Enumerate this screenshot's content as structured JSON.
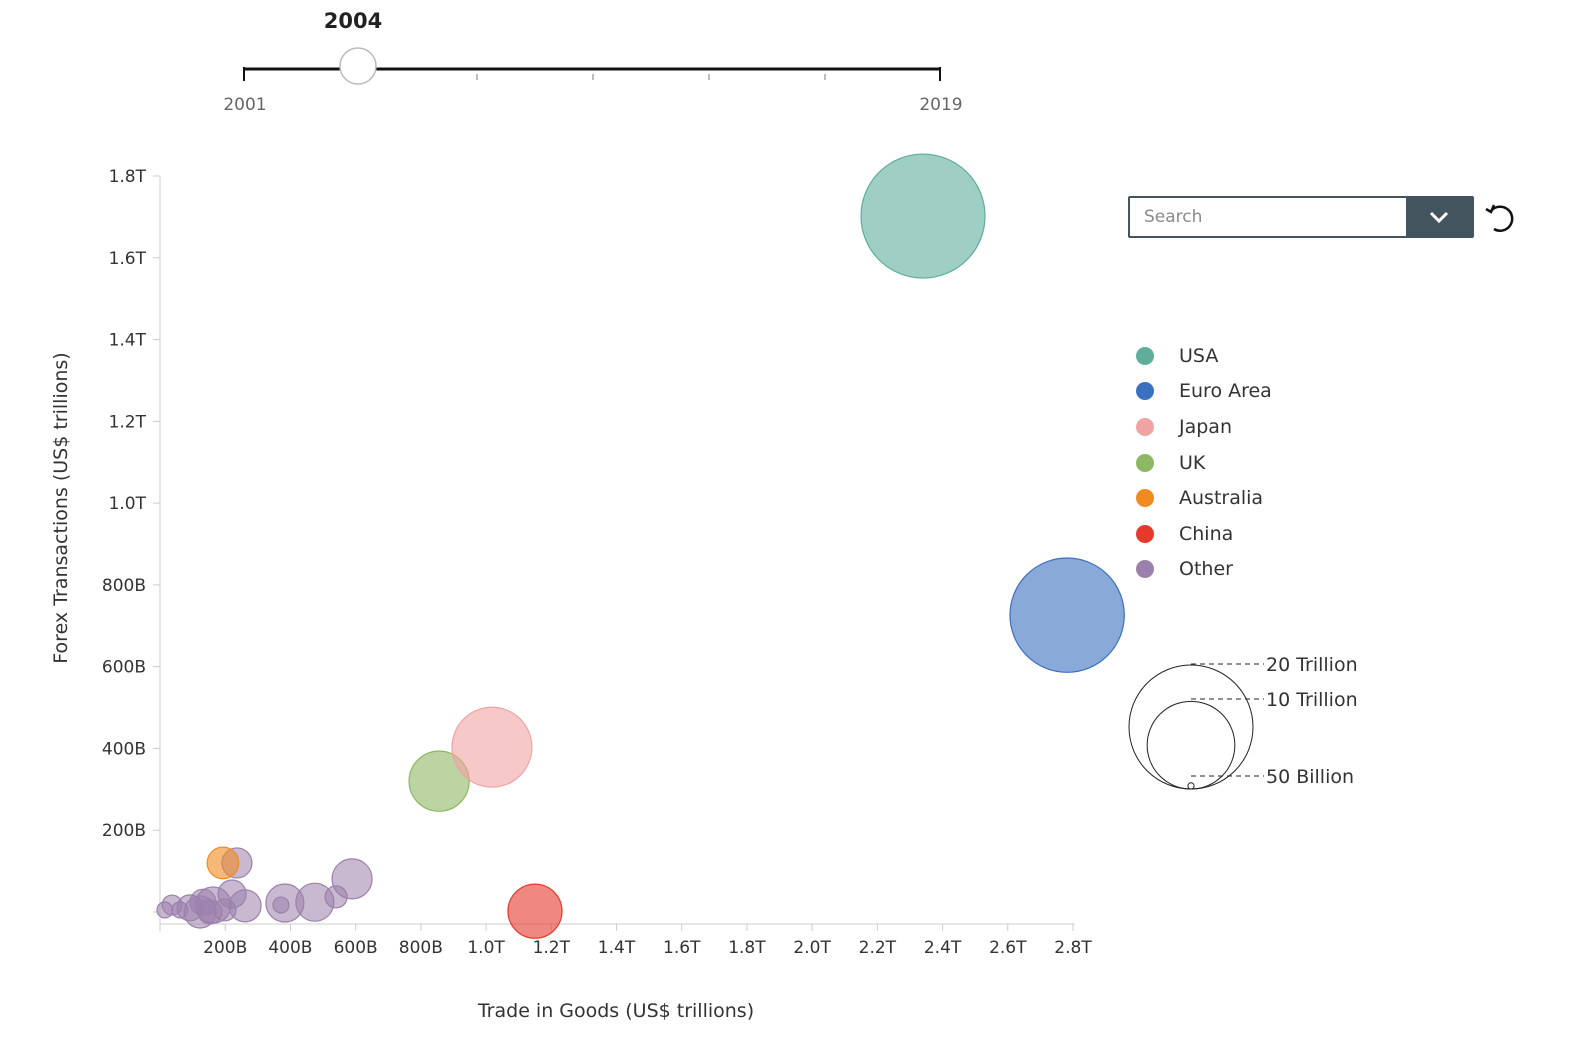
{
  "slider": {
    "current_label": "2004",
    "min_label": "2001",
    "max_label": "2019",
    "min": 2001,
    "max": 2019,
    "value": 2004
  },
  "search": {
    "placeholder": "Search"
  },
  "legend": [
    {
      "label": "USA",
      "color": "#5fae9c"
    },
    {
      "label": "Euro Area",
      "color": "#3b6fbf"
    },
    {
      "label": "Japan",
      "color": "#f0a3a3"
    },
    {
      "label": "UK",
      "color": "#8db863"
    },
    {
      "label": "Australia",
      "color": "#f28b1f"
    },
    {
      "label": "China",
      "color": "#e5392b"
    },
    {
      "label": "Other",
      "color": "#9b80ab"
    }
  ],
  "size_legend": {
    "labels": [
      "20 Trillion",
      "10 Trillion",
      "50 Billion"
    ],
    "values": [
      20,
      10,
      0.05
    ]
  },
  "chart_data": {
    "type": "scatter",
    "xlabel": "Trade in Goods (US$ trillions)",
    "ylabel": "Forex Transactions (US$ trillions)",
    "xlim": [
      0,
      2800
    ],
    "ylim": [
      0,
      1800
    ],
    "x_ticks": [
      {
        "v": 200,
        "l": "200B"
      },
      {
        "v": 400,
        "l": "400B"
      },
      {
        "v": 600,
        "l": "600B"
      },
      {
        "v": 800,
        "l": "800B"
      },
      {
        "v": 1000,
        "l": "1.0T"
      },
      {
        "v": 1200,
        "l": "1.2T"
      },
      {
        "v": 1400,
        "l": "1.4T"
      },
      {
        "v": 1600,
        "l": "1.6T"
      },
      {
        "v": 1800,
        "l": "1.8T"
      },
      {
        "v": 2000,
        "l": "2.0T"
      },
      {
        "v": 2200,
        "l": "2.2T"
      },
      {
        "v": 2400,
        "l": "2.4T"
      },
      {
        "v": 2600,
        "l": "2.6T"
      },
      {
        "v": 2800,
        "l": "2.8T"
      }
    ],
    "y_ticks": [
      {
        "v": 200,
        "l": "200B"
      },
      {
        "v": 400,
        "l": "400B"
      },
      {
        "v": 600,
        "l": "600B"
      },
      {
        "v": 800,
        "l": "800B"
      },
      {
        "v": 1000,
        "l": "1.0T"
      },
      {
        "v": 1200,
        "l": "1.2T"
      },
      {
        "v": 1400,
        "l": "1.4T"
      },
      {
        "v": 1600,
        "l": "1.6T"
      },
      {
        "v": 1800,
        "l": "1.8T"
      }
    ],
    "points": [
      {
        "name": "Other",
        "x": 236,
        "y": 120,
        "size": 1.17
      },
      {
        "name": "Other",
        "x": 589,
        "y": 81,
        "size": 2.08
      },
      {
        "name": "Other",
        "x": 540,
        "y": 37,
        "size": 0.63
      },
      {
        "name": "Other",
        "x": 475,
        "y": 24,
        "size": 1.88
      },
      {
        "name": "Other",
        "x": 383,
        "y": 22,
        "size": 1.88
      },
      {
        "name": "Other",
        "x": 371,
        "y": 17,
        "size": 0.33
      },
      {
        "name": "Other",
        "x": 261,
        "y": 15,
        "size": 1.33
      },
      {
        "name": "Other",
        "x": 221,
        "y": 44,
        "size": 1.02
      },
      {
        "name": "Other",
        "x": 132,
        "y": 24,
        "size": 0.88
      },
      {
        "name": "Other",
        "x": 163,
        "y": 17,
        "size": 1.69
      },
      {
        "name": "Other",
        "x": 92,
        "y": 10,
        "size": 0.88
      },
      {
        "name": "Other",
        "x": 37,
        "y": 17,
        "size": 0.52
      },
      {
        "name": "Other",
        "x": 15,
        "y": 5,
        "size": 0.33
      },
      {
        "name": "Other",
        "x": 61,
        "y": 5,
        "size": 0.33
      },
      {
        "name": "Other",
        "x": 199,
        "y": 5,
        "size": 0.63
      },
      {
        "name": "Other",
        "x": 123,
        "y": 0,
        "size": 1.33
      },
      {
        "name": "Other",
        "x": 153,
        "y": 0,
        "size": 0.75
      },
      {
        "name": "Australia",
        "x": 193,
        "y": 120,
        "size": 1.3
      },
      {
        "name": "UK",
        "x": 856,
        "y": 320,
        "size": 4.7
      },
      {
        "name": "Japan",
        "x": 1018,
        "y": 403,
        "size": 8.3
      },
      {
        "name": "China",
        "x": 1150,
        "y": 2,
        "size": 3.8
      },
      {
        "name": "Euro Area",
        "x": 2782,
        "y": 726,
        "size": 17
      },
      {
        "name": "USA",
        "x": 2340,
        "y": 1702,
        "size": 20
      }
    ]
  }
}
